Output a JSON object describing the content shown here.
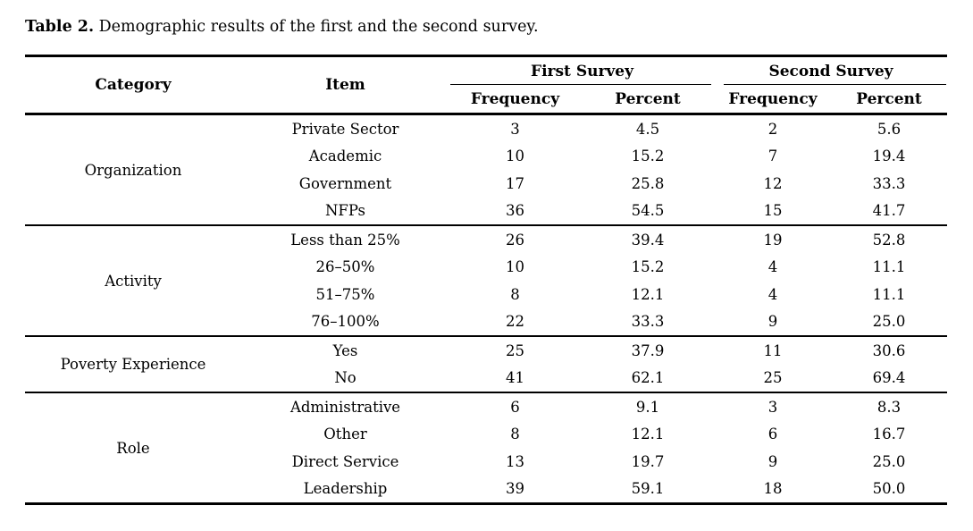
{
  "caption": {
    "label": "Table 2.",
    "text": "Demographic results of the first and the second survey."
  },
  "table": {
    "headers": {
      "category": "Category",
      "item": "Item",
      "first_survey": "First Survey",
      "second_survey": "Second Survey",
      "frequency_1": "Frequency",
      "percent_1": "Percent",
      "frequency_2": "Frequency",
      "percent_2": "Percent"
    },
    "sections": [
      {
        "category": "Organization",
        "rows": [
          {
            "item": "Private Sector",
            "f1": "3",
            "p1": "4.5",
            "f2": "2",
            "p2": "5.6"
          },
          {
            "item": "Academic",
            "f1": "10",
            "p1": "15.2",
            "f2": "7",
            "p2": "19.4"
          },
          {
            "item": "Government",
            "f1": "17",
            "p1": "25.8",
            "f2": "12",
            "p2": "33.3"
          },
          {
            "item": "NFPs",
            "f1": "36",
            "p1": "54.5",
            "f2": "15",
            "p2": "41.7"
          }
        ]
      },
      {
        "category": "Activity",
        "rows": [
          {
            "item": "Less than 25%",
            "f1": "26",
            "p1": "39.4",
            "f2": "19",
            "p2": "52.8"
          },
          {
            "item": "26–50%",
            "f1": "10",
            "p1": "15.2",
            "f2": "4",
            "p2": "11.1"
          },
          {
            "item": "51–75%",
            "f1": "8",
            "p1": "12.1",
            "f2": "4",
            "p2": "11.1"
          },
          {
            "item": "76–100%",
            "f1": "22",
            "p1": "33.3",
            "f2": "9",
            "p2": "25.0"
          }
        ]
      },
      {
        "category": "Poverty Experience",
        "rows": [
          {
            "item": "Yes",
            "f1": "25",
            "p1": "37.9",
            "f2": "11",
            "p2": "30.6"
          },
          {
            "item": "No",
            "f1": "41",
            "p1": "62.1",
            "f2": "25",
            "p2": "69.4"
          }
        ]
      },
      {
        "category": "Role",
        "rows": [
          {
            "item": "Administrative",
            "f1": "6",
            "p1": "9.1",
            "f2": "3",
            "p2": "8.3"
          },
          {
            "item": "Other",
            "f1": "8",
            "p1": "12.1",
            "f2": "6",
            "p2": "16.7"
          },
          {
            "item": "Direct Service",
            "f1": "13",
            "p1": "19.7",
            "f2": "9",
            "p2": "25.0"
          },
          {
            "item": "Leadership",
            "f1": "39",
            "p1": "59.1",
            "f2": "18",
            "p2": "50.0"
          }
        ]
      }
    ]
  },
  "colors": {
    "text": "#000000",
    "rule": "#000000",
    "background": "#ffffff"
  }
}
